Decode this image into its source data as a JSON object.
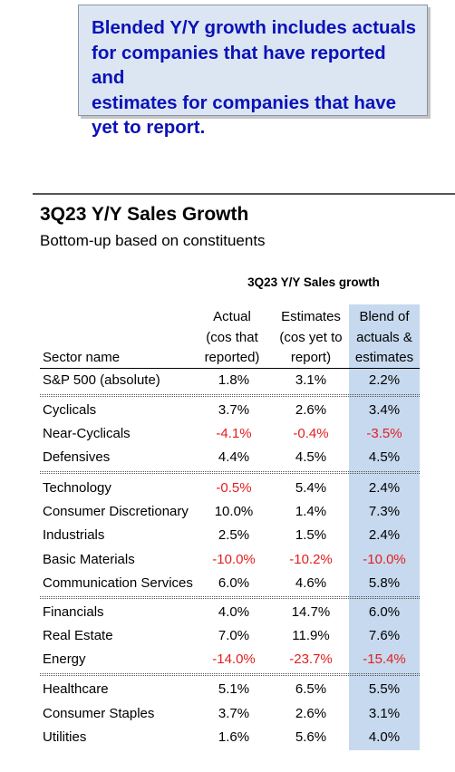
{
  "callout": {
    "line1": "Blended Y/Y growth includes actuals",
    "line2": "for companies that have reported and",
    "line3": "estimates for companies that have",
    "line4": "yet to report."
  },
  "title": "3Q23 Y/Y Sales Growth",
  "subtitle": "Bottom-up based on constituents",
  "group_header": "3Q23 Y/Y Sales growth",
  "columns": {
    "sector": "Sector name",
    "actual": [
      "Actual",
      "(cos that",
      "reported)"
    ],
    "estimates": [
      "Estimates",
      "(cos yet to",
      "report)"
    ],
    "blend": [
      "Blend of",
      "actuals &",
      "estimates"
    ]
  },
  "rows": [
    {
      "name": "S&P 500 (absolute)",
      "actual": "1.8%",
      "est": "3.1%",
      "blend": "2.2%"
    },
    {
      "name": "Cyclicals",
      "actual": "3.7%",
      "est": "2.6%",
      "blend": "3.4%"
    },
    {
      "name": "Near-Cyclicals",
      "actual": "-4.1%",
      "est": "-0.4%",
      "blend": "-3.5%"
    },
    {
      "name": "Defensives",
      "actual": "4.4%",
      "est": "4.5%",
      "blend": "4.5%"
    },
    {
      "name": "Technology",
      "actual": "-0.5%",
      "est": "5.4%",
      "blend": "2.4%"
    },
    {
      "name": "Consumer Discretionary",
      "actual": "10.0%",
      "est": "1.4%",
      "blend": "7.3%"
    },
    {
      "name": "Industrials",
      "actual": "2.5%",
      "est": "1.5%",
      "blend": "2.4%"
    },
    {
      "name": "Basic Materials",
      "actual": "-10.0%",
      "est": "-10.2%",
      "blend": "-10.0%"
    },
    {
      "name": "Communication Services",
      "actual": "6.0%",
      "est": "4.6%",
      "blend": "5.8%"
    },
    {
      "name": "Financials",
      "actual": "4.0%",
      "est": "14.7%",
      "blend": "6.0%"
    },
    {
      "name": "Real Estate",
      "actual": "7.0%",
      "est": "11.9%",
      "blend": "7.6%"
    },
    {
      "name": "Energy",
      "actual": "-14.0%",
      "est": "-23.7%",
      "blend": "-15.4%"
    },
    {
      "name": "Healthcare",
      "actual": "5.1%",
      "est": "6.5%",
      "blend": "5.5%"
    },
    {
      "name": "Consumer Staples",
      "actual": "3.7%",
      "est": "2.6%",
      "blend": "3.1%"
    },
    {
      "name": "Utilities",
      "actual": "1.6%",
      "est": "5.6%",
      "blend": "4.0%"
    }
  ],
  "colors": {
    "callout_text": "#0a12b8",
    "callout_bg": "#dce6f2",
    "blend_column_bg": "#c6d9ee",
    "negative": "#e41e1e"
  }
}
